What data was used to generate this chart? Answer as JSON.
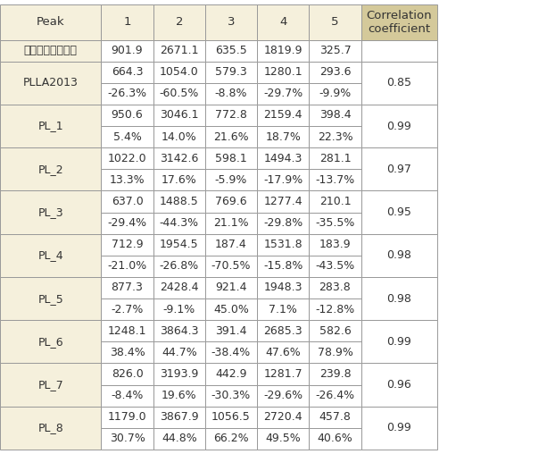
{
  "header_row": [
    "Peak",
    "1",
    "2",
    "3",
    "4",
    "5",
    "Correlation\ncoefficient"
  ],
  "rows": [
    {
      "label": "표준성분프로파일",
      "values": [
        "901.9",
        "2671.1",
        "635.5",
        "1819.9",
        "325.7"
      ],
      "pct": null,
      "corr": null,
      "rowspan": 1
    },
    {
      "label": "PLLA2013",
      "values": [
        "664.3",
        "1054.0",
        "579.3",
        "1280.1",
        "293.6"
      ],
      "pct": [
        "-26.3%",
        "-60.5%",
        "-8.8%",
        "-29.7%",
        "-9.9%"
      ],
      "corr": "0.85",
      "rowspan": 2
    },
    {
      "label": "PL_1",
      "values": [
        "950.6",
        "3046.1",
        "772.8",
        "2159.4",
        "398.4"
      ],
      "pct": [
        "5.4%",
        "14.0%",
        "21.6%",
        "18.7%",
        "22.3%"
      ],
      "corr": "0.99",
      "rowspan": 2
    },
    {
      "label": "PL_2",
      "values": [
        "1022.0",
        "3142.6",
        "598.1",
        "1494.3",
        "281.1"
      ],
      "pct": [
        "13.3%",
        "17.6%",
        "-5.9%",
        "-17.9%",
        "-13.7%"
      ],
      "corr": "0.97",
      "rowspan": 2
    },
    {
      "label": "PL_3",
      "values": [
        "637.0",
        "1488.5",
        "769.6",
        "1277.4",
        "210.1"
      ],
      "pct": [
        "-29.4%",
        "-44.3%",
        "21.1%",
        "-29.8%",
        "-35.5%"
      ],
      "corr": "0.95",
      "rowspan": 2
    },
    {
      "label": "PL_4",
      "values": [
        "712.9",
        "1954.5",
        "187.4",
        "1531.8",
        "183.9"
      ],
      "pct": [
        "-21.0%",
        "-26.8%",
        "-70.5%",
        "-15.8%",
        "-43.5%"
      ],
      "corr": "0.98",
      "rowspan": 2
    },
    {
      "label": "PL_5",
      "values": [
        "877.3",
        "2428.4",
        "921.4",
        "1948.3",
        "283.8"
      ],
      "pct": [
        "-2.7%",
        "-9.1%",
        "45.0%",
        "7.1%",
        "-12.8%"
      ],
      "corr": "0.98",
      "rowspan": 2
    },
    {
      "label": "PL_6",
      "values": [
        "1248.1",
        "3864.3",
        "391.4",
        "2685.3",
        "582.6"
      ],
      "pct": [
        "38.4%",
        "44.7%",
        "-38.4%",
        "47.6%",
        "78.9%"
      ],
      "corr": "0.99",
      "rowspan": 2
    },
    {
      "label": "PL_7",
      "values": [
        "826.0",
        "3193.9",
        "442.9",
        "1281.7",
        "239.8"
      ],
      "pct": [
        "-8.4%",
        "19.6%",
        "-30.3%",
        "-29.6%",
        "-26.4%"
      ],
      "corr": "0.96",
      "rowspan": 2
    },
    {
      "label": "PL_8",
      "values": [
        "1179.0",
        "3867.9",
        "1056.5",
        "2720.4",
        "457.8"
      ],
      "pct": [
        "30.7%",
        "44.8%",
        "66.2%",
        "49.5%",
        "40.6%"
      ],
      "corr": "0.99",
      "rowspan": 2
    }
  ],
  "header_bg": "#F5F0DC",
  "label_bg": "#F5F0DC",
  "corr_header_bg": "#D4C99A",
  "row_bg": "#FFFFFF",
  "border_color": "#999999",
  "text_color": "#333333",
  "header_fontsize": 9.5,
  "cell_fontsize": 9.0
}
